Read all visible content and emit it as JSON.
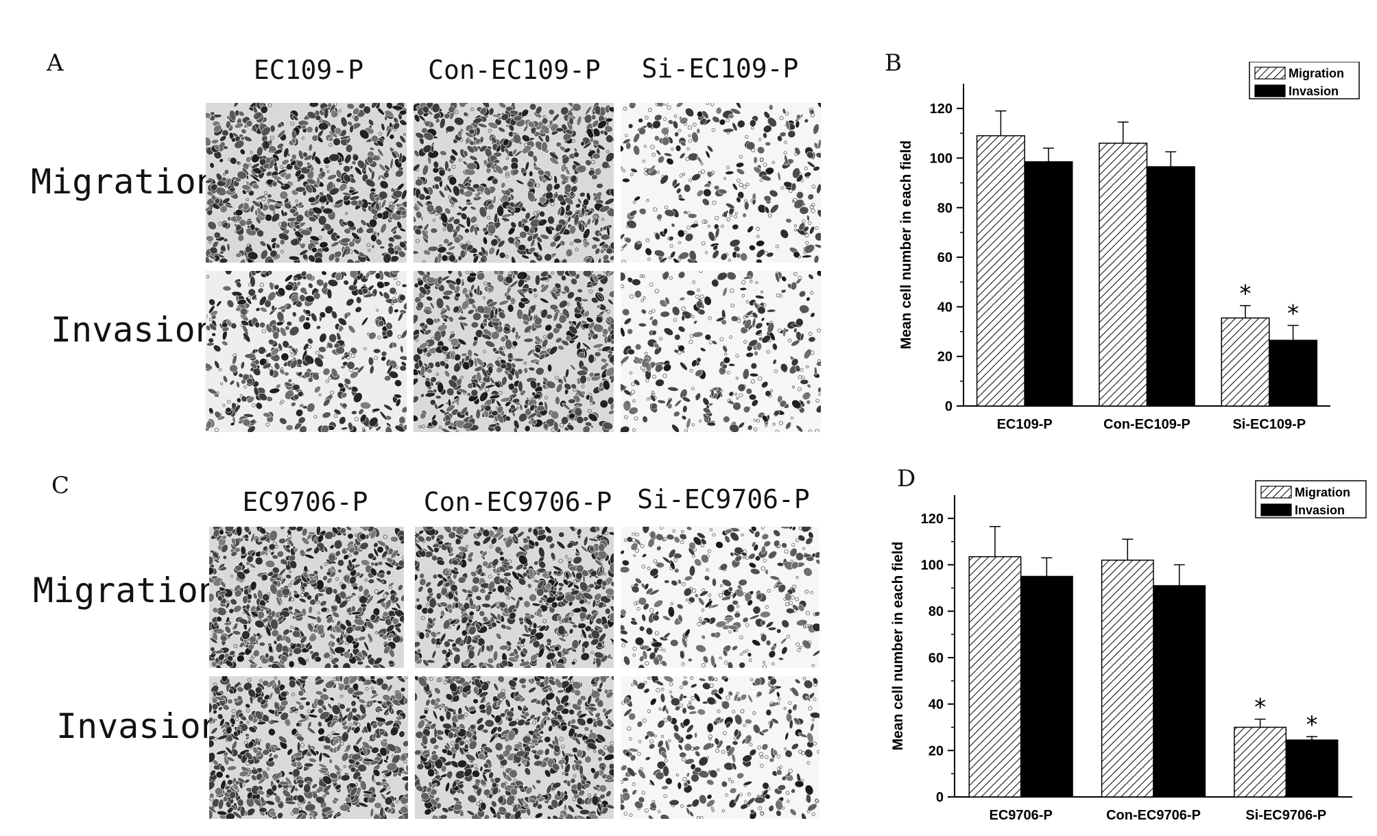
{
  "figure": {
    "panels": {
      "A": {
        "letter": "A",
        "columns": [
          "EC109-P",
          "Con-EC109-P",
          "Si-EC109-P"
        ],
        "rows": [
          "Migration",
          "Invasion"
        ]
      },
      "B": {
        "letter": "B"
      },
      "C": {
        "letter": "C",
        "columns": [
          "EC9706-P",
          "Con-EC9706-P",
          "Si-EC9706-P"
        ],
        "rows": [
          "Migration",
          "Invasion"
        ]
      },
      "D": {
        "letter": "D"
      }
    }
  },
  "chart_data": [
    {
      "id": "B",
      "type": "bar",
      "categories": [
        "EC109-P",
        "Con-EC109-P",
        "Si-EC109-P"
      ],
      "series": [
        {
          "name": "Migration",
          "values": [
            109,
            106,
            35.5
          ],
          "errors": [
            10,
            8.5,
            5
          ],
          "pattern": "hatched"
        },
        {
          "name": "Invasion",
          "values": [
            98.5,
            96.5,
            26.5
          ],
          "errors": [
            5.5,
            6,
            6
          ],
          "pattern": "solid",
          "color": "#000000"
        }
      ],
      "significance": [
        {
          "category": "Si-EC109-P",
          "series": "Migration",
          "mark": "*"
        },
        {
          "category": "Si-EC109-P",
          "series": "Invasion",
          "mark": "*"
        }
      ],
      "ylabel": "Mean cell number in each field",
      "ylim": [
        0,
        130
      ],
      "yticks": [
        0,
        20,
        40,
        60,
        80,
        100,
        120
      ],
      "legend_position": "top-right",
      "grid": false
    },
    {
      "id": "D",
      "type": "bar",
      "categories": [
        "EC9706-P",
        "Con-EC9706-P",
        "Si-EC9706-P"
      ],
      "series": [
        {
          "name": "Migration",
          "values": [
            103.5,
            102,
            30
          ],
          "errors": [
            13,
            9,
            3.5
          ],
          "pattern": "hatched"
        },
        {
          "name": "Invasion",
          "values": [
            95,
            91,
            24.5
          ],
          "errors": [
            8,
            9,
            1.5
          ],
          "pattern": "solid",
          "color": "#000000"
        }
      ],
      "significance": [
        {
          "category": "Si-EC9706-P",
          "series": "Migration",
          "mark": "*"
        },
        {
          "category": "Si-EC9706-P",
          "series": "Invasion",
          "mark": "*"
        }
      ],
      "ylabel": "Mean cell number in each field",
      "ylim": [
        0,
        130
      ],
      "yticks": [
        0,
        20,
        40,
        60,
        80,
        100,
        120
      ],
      "legend_position": "top-right",
      "grid": false
    }
  ]
}
